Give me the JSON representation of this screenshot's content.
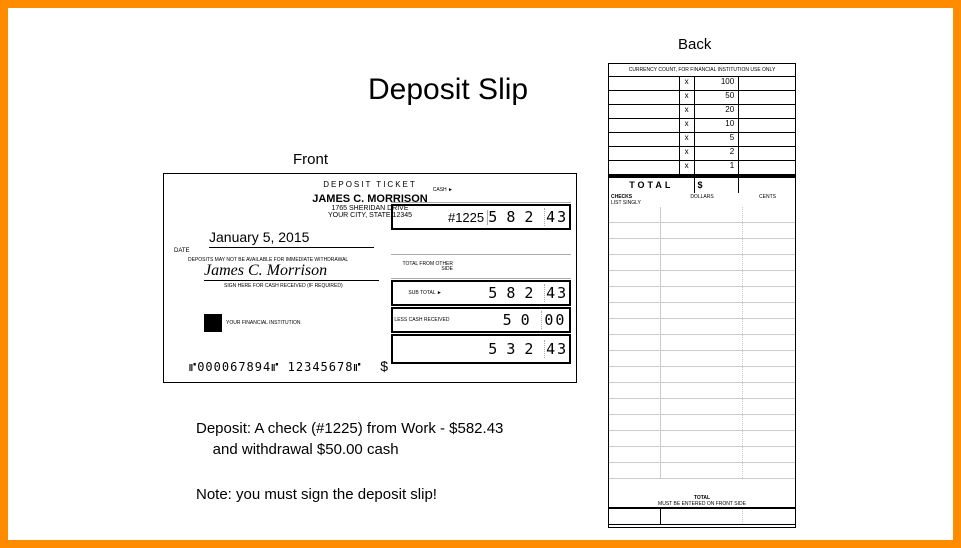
{
  "title": "Deposit Slip",
  "labels": {
    "front": "Front",
    "back": "Back"
  },
  "front": {
    "header": "DEPOSIT TICKET",
    "name": "JAMES C. MORRISON",
    "addr1": "1765 SHERIDAN DRIVE",
    "addr2": "YOUR CITY, STATE  12345",
    "date": "January 5, 2015",
    "date_label": "DATE",
    "deposit_fine": "DEPOSITS MAY NOT BE AVAILABLE FOR IMMEDIATE WITHDRAWAL",
    "signature": "James C. Morrison",
    "sig_fine": "SIGN HERE FOR CASH RECEIVED (IF REQUIRED)",
    "logo_text": "YOUR FINANCIAL INSTITUTION",
    "micr": "⑈000067894⑈ 12345678⑈",
    "dollar_sign": "$",
    "cash_label": "CASH ►",
    "rows": [
      {
        "label": "",
        "num": "",
        "dollars": "",
        "cents": ""
      },
      {
        "label": "",
        "num": "#1225",
        "dollars": "582",
        "cents": "43"
      },
      {
        "label": "",
        "num": "",
        "dollars": "",
        "cents": ""
      },
      {
        "label": "TOTAL FROM OTHER SIDE",
        "num": "",
        "dollars": "",
        "cents": ""
      },
      {
        "label": "SUB TOTAL ►",
        "num": "",
        "dollars": "582",
        "cents": "43"
      },
      {
        "label": "LESS CASH RECEIVED",
        "num": "",
        "dollars": "50",
        "cents": "00"
      },
      {
        "label": "",
        "num": "",
        "dollars": "532",
        "cents": "43"
      }
    ]
  },
  "back": {
    "header": "CURRENCY COUNT, FOR FINANCIAL INSTITUTION USE ONLY",
    "denoms": [
      {
        "x": "x",
        "d": "100"
      },
      {
        "x": "x",
        "d": "50"
      },
      {
        "x": "x",
        "d": "20"
      },
      {
        "x": "x",
        "d": "10"
      },
      {
        "x": "x",
        "d": "5"
      },
      {
        "x": "x",
        "d": "2"
      },
      {
        "x": "x",
        "d": "1"
      }
    ],
    "total_label": "TOTAL",
    "total_sym": "$",
    "checks_label": "CHECKS",
    "list_singly": "LIST SINGLY",
    "col_dollars": "DOLLARS",
    "col_cents": "CENTS",
    "lines_count": 17,
    "footer_label": "TOTAL",
    "footer_sub": "MUST BE ENTERED ON FRONT SIDE"
  },
  "notes": {
    "line1": "Deposit: A check (#1225) from Work - $582.43",
    "line2": "and withdrawal $50.00 cash",
    "line3": "Note: you must sign the deposit slip!"
  }
}
